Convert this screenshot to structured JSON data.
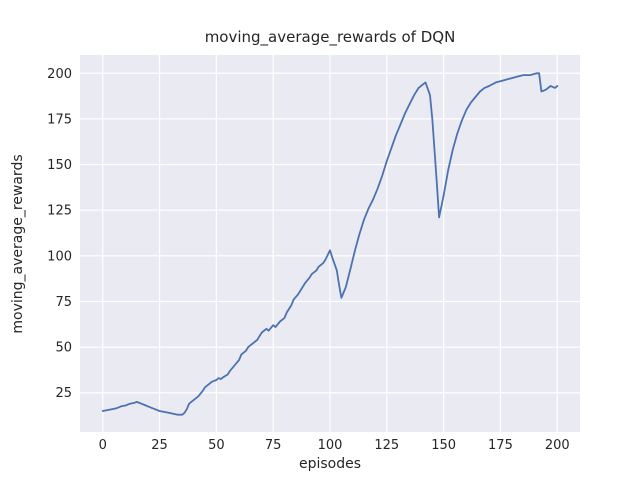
{
  "chart_data": {
    "type": "line",
    "title": "moving_average_rewards of DQN",
    "xlabel": "episodes",
    "ylabel": "moving_average_rewards",
    "xlim": [
      -10,
      210
    ],
    "ylim": [
      3.5,
      210
    ],
    "xticks": [
      0,
      25,
      50,
      75,
      100,
      125,
      150,
      175,
      200
    ],
    "yticks": [
      25,
      50,
      75,
      100,
      125,
      150,
      175,
      200
    ],
    "grid": true,
    "legend_position": "none",
    "style": {
      "line_color": "#4c72b0",
      "axes_background": "#eaeaf2",
      "grid_color": "#ffffff",
      "figure_background": "#ffffff",
      "text_color": "#262626"
    },
    "series": [
      {
        "name": "moving_average_rewards",
        "x": [
          0,
          2,
          4,
          6,
          8,
          10,
          12,
          14,
          15,
          17,
          19,
          21,
          23,
          25,
          27,
          29,
          31,
          33,
          35,
          36,
          37,
          38,
          40,
          42,
          44,
          45,
          46,
          48,
          50,
          51,
          52,
          53,
          55,
          56,
          58,
          60,
          61,
          63,
          64,
          66,
          68,
          69,
          70,
          72,
          73,
          75,
          76,
          78,
          80,
          81,
          83,
          84,
          86,
          88,
          89,
          91,
          92,
          94,
          95,
          97,
          98,
          100,
          101,
          103,
          104,
          105,
          107,
          109,
          111,
          113,
          115,
          117,
          119,
          121,
          123,
          125,
          127,
          129,
          131,
          133,
          135,
          137,
          139,
          141,
          142,
          144,
          145,
          146,
          147,
          148,
          150,
          152,
          154,
          156,
          158,
          160,
          162,
          164,
          166,
          168,
          170,
          173,
          176,
          179,
          182,
          185,
          188,
          191,
          192,
          193,
          195,
          197,
          199,
          200
        ],
        "y": [
          15,
          15.5,
          16,
          16.5,
          17.5,
          18,
          19,
          19.5,
          20,
          19,
          18,
          17,
          16,
          15,
          14.5,
          14,
          13.5,
          13,
          13,
          14,
          16,
          19,
          21,
          23,
          26,
          28,
          29,
          31,
          32,
          33,
          32.5,
          33.5,
          35,
          37,
          40,
          43,
          46,
          48,
          50,
          52,
          54,
          56,
          58,
          60,
          59,
          62,
          61,
          64,
          66,
          69,
          73,
          76,
          79,
          83,
          85,
          88,
          90,
          92,
          94,
          96,
          98,
          103,
          99,
          92,
          84,
          77,
          83,
          93,
          103,
          112,
          120,
          126,
          131,
          137,
          144,
          152,
          159,
          166,
          172,
          178,
          183,
          188,
          192,
          194,
          195,
          188,
          175,
          158,
          140,
          121,
          133,
          147,
          158,
          167,
          174,
          180,
          184,
          187,
          190,
          192,
          193,
          195,
          196,
          197,
          198,
          199,
          199,
          200,
          200,
          190,
          191,
          193,
          192,
          193
        ]
      }
    ]
  }
}
